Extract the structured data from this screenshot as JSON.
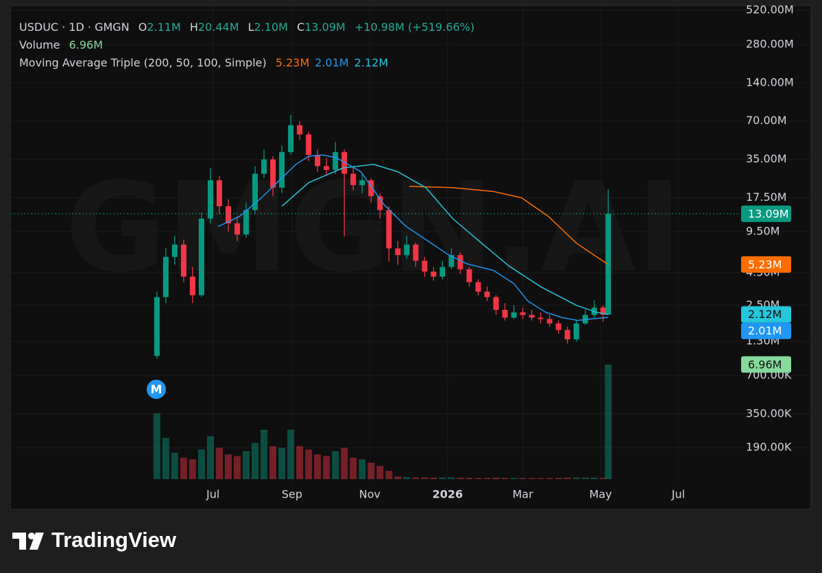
{
  "header": {
    "symbol": "USDUC · 1D · GMGN",
    "ohlc_keys": [
      "O",
      "H",
      "L",
      "C"
    ],
    "open": "2.11M",
    "high": "20.44M",
    "low": "2.10M",
    "change": "+10.98M (+519.66%)",
    "volume_name": "Volume",
    "ma_name": "Moving Average Triple (200, 50, 100, Simple)"
  },
  "watermark": "GMGN.AI",
  "marker": "M",
  "footer": "TradingView",
  "chart_data": {
    "type": "candlestick",
    "log_scale": true,
    "grid": true,
    "up_color": "#089981",
    "down_color": "#f23645",
    "volume_color": "#86d99a",
    "close_label": "13.09M",
    "volume_label": "6.96M",
    "ylim": [
      0.1,
      567
    ],
    "yticks": [
      {
        "value": 520,
        "label": "520.00M"
      },
      {
        "value": 280,
        "label": "280.00M"
      },
      {
        "value": 140,
        "label": "140.00M"
      },
      {
        "value": 70,
        "label": "70.00M"
      },
      {
        "value": 35,
        "label": "35.00M"
      },
      {
        "value": 17.5,
        "label": "17.50M"
      },
      {
        "value": 9.5,
        "label": "9.50M"
      },
      {
        "value": 4.5,
        "label": "4.50M"
      },
      {
        "value": 2.5,
        "label": "2.50M"
      },
      {
        "value": 1.3,
        "label": "1.30M"
      },
      {
        "value": 0.7,
        "label": "700.00K"
      },
      {
        "value": 0.35,
        "label": "350.00K"
      },
      {
        "value": 0.19,
        "label": "190.00K"
      }
    ],
    "xlim": [
      -115,
      455
    ],
    "xticks": [
      {
        "value": 44,
        "label": "Jul"
      },
      {
        "value": 106,
        "label": "Sep"
      },
      {
        "value": 167,
        "label": "Nov"
      },
      {
        "value": 228,
        "label": "2026"
      },
      {
        "value": 287,
        "label": "Mar"
      },
      {
        "value": 348,
        "label": "May"
      },
      {
        "value": 409,
        "label": "Jul"
      }
    ],
    "vlim": [
      0,
      7.2
    ],
    "x": [
      0,
      7,
      14,
      21,
      28,
      35,
      42,
      49,
      56,
      63,
      70,
      77,
      84,
      91,
      98,
      105,
      112,
      119,
      126,
      133,
      140,
      147,
      154,
      161,
      168,
      175,
      182,
      189,
      196,
      203,
      210,
      217,
      224,
      231,
      238,
      245,
      252,
      259,
      266,
      273,
      280,
      287,
      294,
      301,
      308,
      315,
      322,
      329,
      336,
      343,
      350,
      354
    ],
    "open": [
      1.0,
      2.9,
      6.0,
      7.5,
      4.2,
      3.0,
      12,
      24,
      15,
      11,
      9,
      14,
      27,
      35,
      21,
      40,
      65,
      55,
      38,
      31,
      29,
      40,
      27,
      22,
      24,
      18,
      14,
      7,
      6.2,
      7.5,
      5.6,
      4.6,
      4.2,
      5.0,
      6.2,
      4.8,
      3.8,
      3.2,
      2.9,
      2.3,
      2.0,
      2.2,
      2.1,
      2.0,
      1.95,
      1.8,
      1.6,
      1.35,
      1.8,
      2.1,
      2.4,
      2.11
    ],
    "high": [
      3.2,
      7.0,
      8.8,
      8.2,
      5.0,
      13.5,
      30,
      26,
      17,
      12.5,
      16,
      31,
      42,
      37,
      45,
      78,
      70,
      58,
      42,
      36,
      48,
      42,
      30,
      27,
      25,
      19,
      15,
      8,
      8.8,
      7.8,
      6.0,
      5.0,
      5.6,
      7.0,
      6.5,
      5.0,
      4.0,
      3.5,
      3.0,
      2.6,
      2.5,
      2.4,
      2.3,
      2.2,
      2.1,
      1.9,
      1.7,
      1.9,
      2.3,
      2.75,
      2.5,
      20.44
    ],
    "low": [
      0.95,
      2.6,
      5.2,
      3.8,
      2.6,
      2.9,
      11,
      13,
      9.5,
      8,
      8.5,
      13,
      25,
      18,
      19,
      38,
      50,
      34,
      28,
      26,
      27,
      8.7,
      20,
      19,
      16,
      12,
      5.5,
      5.2,
      5.8,
      5.0,
      4.2,
      3.9,
      4.0,
      4.8,
      4.4,
      3.5,
      3.0,
      2.7,
      2.1,
      1.9,
      1.95,
      1.95,
      1.9,
      1.8,
      1.7,
      1.5,
      1.25,
      1.3,
      1.75,
      2.0,
      1.85,
      2.1
    ],
    "close": [
      2.9,
      6.0,
      7.5,
      4.2,
      3.0,
      12,
      24,
      15,
      11,
      9,
      14,
      27,
      35,
      21,
      40,
      65,
      55,
      38,
      31,
      29,
      40,
      27,
      22,
      24,
      18,
      14,
      7,
      6.2,
      7.5,
      5.6,
      4.6,
      4.2,
      5.0,
      6.2,
      4.8,
      3.8,
      3.2,
      2.9,
      2.3,
      2.0,
      2.2,
      2.1,
      2.0,
      1.95,
      1.8,
      1.6,
      1.35,
      1.8,
      2.1,
      2.4,
      2.11,
      13.09
    ],
    "volume": [
      4.0,
      2.5,
      1.6,
      1.3,
      1.2,
      1.8,
      2.6,
      1.9,
      1.5,
      1.4,
      1.7,
      2.2,
      3.0,
      2.0,
      1.9,
      3.0,
      2.0,
      1.8,
      1.5,
      1.4,
      1.7,
      1.9,
      1.3,
      1.2,
      1.0,
      0.8,
      0.5,
      0.15,
      0.12,
      0.1,
      0.1,
      0.09,
      0.1,
      0.11,
      0.09,
      0.08,
      0.08,
      0.08,
      0.09,
      0.08,
      0.07,
      0.07,
      0.07,
      0.07,
      0.07,
      0.08,
      0.09,
      0.1,
      0.09,
      0.09,
      0.08,
      6.96
    ],
    "series": [
      {
        "color": "#ff6d00",
        "label": "5.23M",
        "x": [
          198,
          232,
          264,
          286,
          307,
          329,
          345,
          354
        ],
        "values": [
          21.5,
          21,
          19.6,
          17.5,
          12.5,
          7.7,
          6.0,
          5.23
        ]
      },
      {
        "color": "#2196f3",
        "label": "2.01M",
        "x": [
          48,
          65,
          82,
          98,
          109,
          119,
          130,
          141,
          160,
          178,
          195,
          211,
          228,
          243,
          264,
          280,
          291,
          305,
          318,
          330,
          340,
          354
        ],
        "values": [
          10.4,
          12.5,
          17.5,
          25,
          32,
          37,
          38,
          36,
          28,
          15.5,
          10.5,
          8.2,
          6.3,
          5.3,
          4.7,
          3.7,
          2.7,
          2.2,
          2.0,
          1.9,
          1.95,
          2.01
        ]
      },
      {
        "color": "#26c6da",
        "label": "2.12M",
        "x": [
          98,
          119,
          146,
          170,
          189,
          211,
          232,
          254,
          276,
          301,
          329,
          345,
          354
        ],
        "values": [
          15,
          23,
          30,
          32,
          28,
          21,
          12,
          7.8,
          5.1,
          3.5,
          2.5,
          2.2,
          2.12
        ]
      }
    ]
  }
}
